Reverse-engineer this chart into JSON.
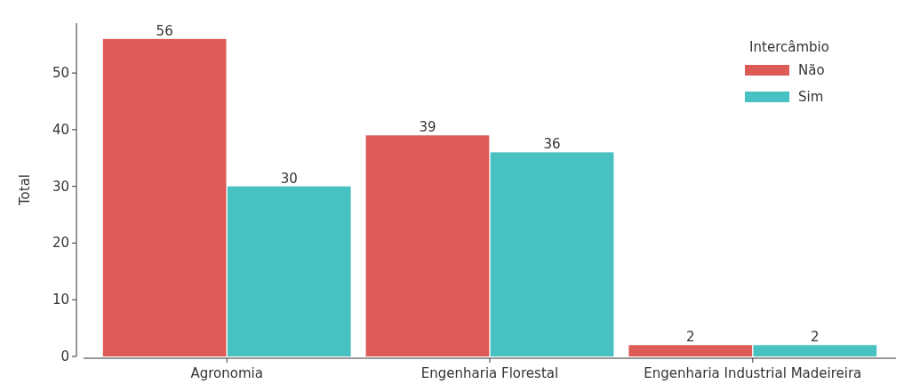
{
  "chart_data": {
    "type": "bar",
    "ylabel": "Total",
    "categories": [
      "Agronomia",
      "Engenharia Florestal",
      "Engenharia Industrial Madeireira"
    ],
    "series": [
      {
        "name": "Não",
        "color": "#dc5b57",
        "values": [
          56,
          39,
          2
        ]
      },
      {
        "name": "Sim",
        "color": "#47c1c1",
        "values": [
          30,
          36,
          2
        ]
      }
    ],
    "ylim": [
      0,
      58.8
    ],
    "yticks": [
      0,
      10,
      20,
      30,
      40,
      50
    ],
    "legend": "top right",
    "legend_title": "Intercâmbio",
    "data_labels": true,
    "grid": false
  }
}
